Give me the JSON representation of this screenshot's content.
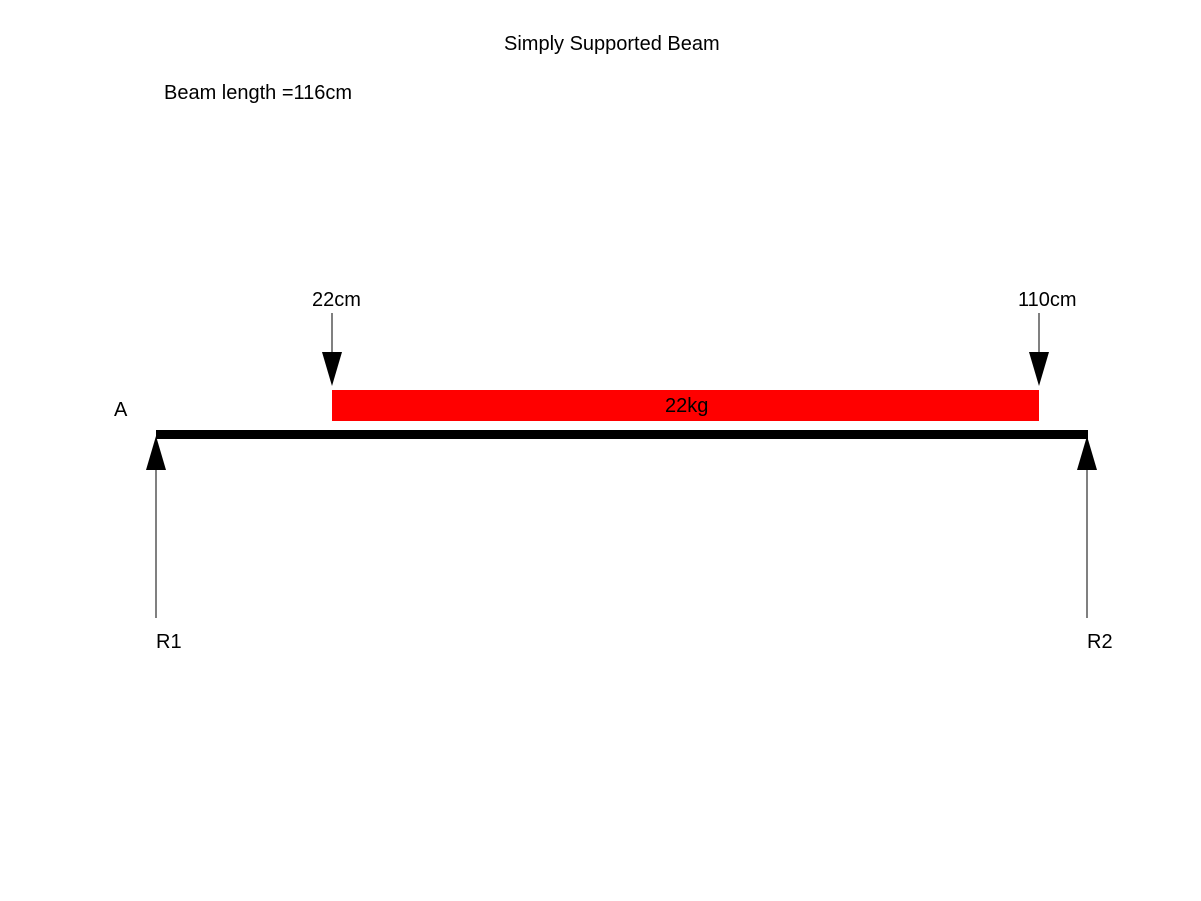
{
  "title": "Simply Supported Beam",
  "beam_length_text": "Beam length =116cm",
  "point_label": "A",
  "load": {
    "start_label": "22cm",
    "end_label": "110cm",
    "magnitude_label": "22kg",
    "color": "#ff0000"
  },
  "reactions": {
    "left_label": "R1",
    "right_label": "R2"
  },
  "beam_color": "#000000"
}
